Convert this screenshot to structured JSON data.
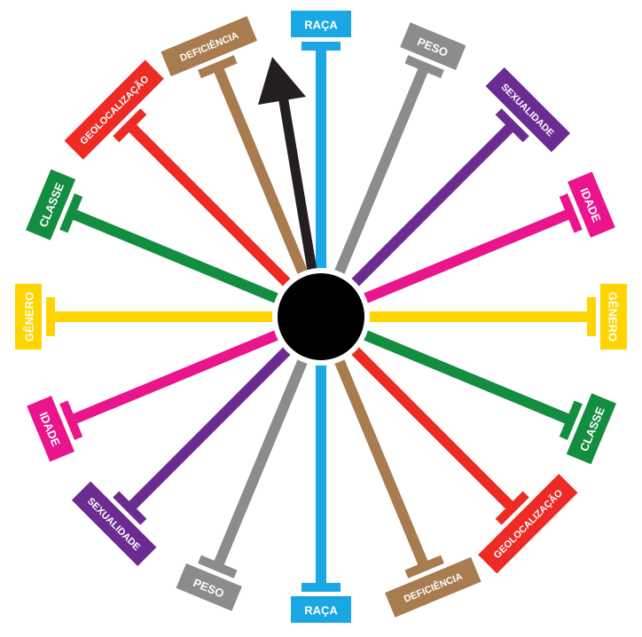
{
  "spokes": [
    {
      "label": "RAÇA",
      "color": "#1aa7e3"
    },
    {
      "label": "PESO",
      "color": "#8c8c8c"
    },
    {
      "label": "SEXUALIDADE",
      "color": "#6a2c91"
    },
    {
      "label": "IDADE",
      "color": "#ea148c"
    },
    {
      "label": "GÊNERO",
      "color": "#ffd400"
    },
    {
      "label": "CLASSE",
      "color": "#138d3f"
    },
    {
      "label": "GEOLOCALIZAÇÃO",
      "color": "#ee2a24"
    },
    {
      "label": "DEFICIÊNCIA",
      "color": "#a97c50"
    },
    {
      "label": "RAÇA",
      "color": "#1aa7e3"
    },
    {
      "label": "PESO",
      "color": "#8c8c8c"
    },
    {
      "label": "SEXUALIDADE",
      "color": "#6a2c91"
    },
    {
      "label": "IDADE",
      "color": "#ea148c"
    },
    {
      "label": "GÊNERO",
      "color": "#ffd400"
    },
    {
      "label": "CLASSE",
      "color": "#138d3f"
    },
    {
      "label": "GEOLOCALIZAÇÃO",
      "color": "#ee2a24"
    },
    {
      "label": "DEFICIÊNCIA",
      "color": "#a97c50"
    }
  ],
  "hub_color": "#000000",
  "pointer_color": "#231f20",
  "pointer_target": "DEFICIÊNCIA"
}
